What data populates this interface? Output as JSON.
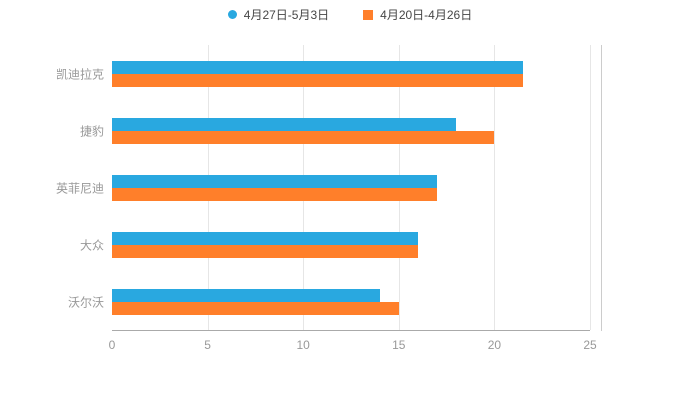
{
  "chart_data": {
    "type": "bar",
    "orientation": "horizontal",
    "title": "",
    "categories": [
      "凯迪拉克",
      "捷豹",
      "英菲尼迪",
      "大众",
      "沃尔沃"
    ],
    "series": [
      {
        "name": "4月27日-5月3日",
        "color": "#29A8E0",
        "marker": "circle",
        "values": [
          21.5,
          18,
          17,
          16,
          14
        ]
      },
      {
        "name": "4月20日-4月26日",
        "color": "#FF7F2A",
        "marker": "square",
        "values": [
          21.5,
          20,
          17,
          16,
          15
        ]
      }
    ],
    "xlabel": "",
    "ylabel": "",
    "xlim": [
      0,
      25
    ],
    "xticks": [
      0,
      5,
      10,
      15,
      20,
      25
    ],
    "grid": true,
    "legend_position": "top"
  },
  "colors": {
    "series1": "#29A8E0",
    "series2": "#FF7F2A",
    "axis_line": "#aaaaaa",
    "gridline": "#e6e6e6",
    "label_text": "#999999",
    "legend_text": "#464646"
  }
}
